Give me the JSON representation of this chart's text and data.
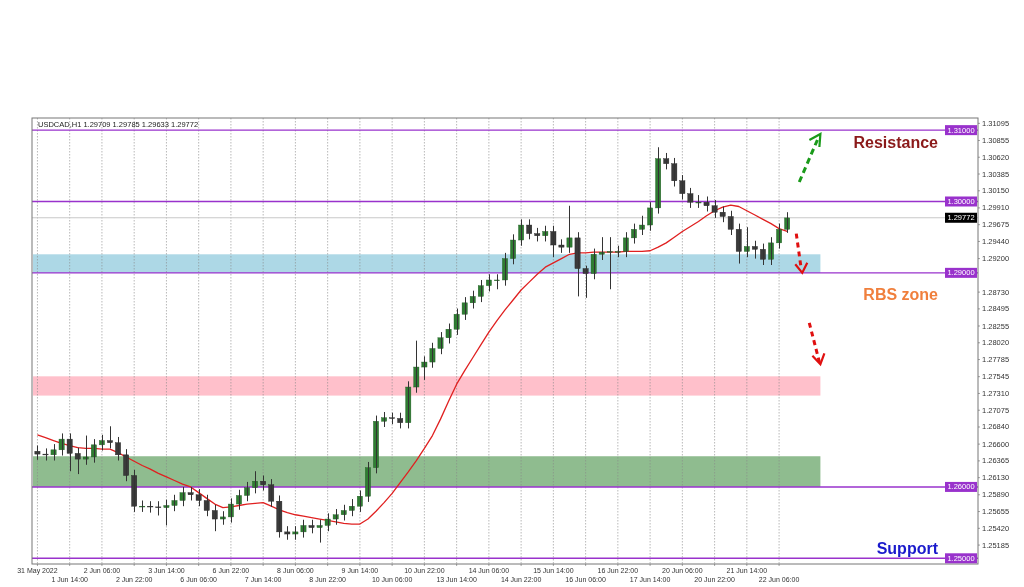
{
  "chart_data": {
    "type": "candlestick",
    "categories": [
      "31 May 2022",
      null,
      null,
      null,
      "1 Jun 14:00",
      null,
      null,
      null,
      "2 Jun 06:00",
      null,
      null,
      null,
      "2 Jun 22:00",
      null,
      null,
      null,
      "3 Jun 14:00",
      null,
      null,
      null,
      "6 Jun 06:00",
      null,
      null,
      null,
      "6 Jun 22:00",
      null,
      null,
      null,
      "7 Jun 14:00",
      null,
      null,
      null,
      "8 Jun 06:00",
      null,
      null,
      null,
      "8 Jun 22:00",
      null,
      null,
      null,
      "9 Jun 14:00",
      null,
      null,
      null,
      "10 Jun 06:00",
      null,
      null,
      null,
      "10 Jun 22:00",
      null,
      null,
      null,
      "13 Jun 14:00",
      null,
      null,
      null,
      "14 Jun 06:00",
      null,
      null,
      null,
      "14 Jun 22:00",
      null,
      null,
      null,
      "15 Jun 14:00",
      null,
      null,
      null,
      "16 Jun 06:00",
      null,
      null,
      null,
      "16 Jun 22:00",
      null,
      null,
      null,
      "17 Jun 14:00",
      null,
      null,
      null,
      "20 Jun 06:00",
      null,
      null,
      null,
      "20 Jun 22:00",
      null,
      null,
      null,
      "21 Jun 14:00",
      null,
      null,
      null,
      "22 Jun 06:00",
      null
    ],
    "ohlc": [
      [
        1.265,
        1.2658,
        1.2638,
        1.2646
      ],
      [
        1.2646,
        1.2654,
        1.2637,
        1.2645
      ],
      [
        1.2645,
        1.266,
        1.2637,
        1.2652
      ],
      [
        1.2652,
        1.2675,
        1.2644,
        1.2667
      ],
      [
        1.2667,
        1.2675,
        1.2622,
        1.2647
      ],
      [
        1.2647,
        1.2655,
        1.2618,
        1.2639
      ],
      [
        1.2639,
        1.2672,
        1.2631,
        1.2642
      ],
      [
        1.2642,
        1.2667,
        1.2634,
        1.2659
      ],
      [
        1.2659,
        1.2673,
        1.2651,
        1.2665
      ],
      [
        1.2665,
        1.2685,
        1.2654,
        1.2662
      ],
      [
        1.2662,
        1.267,
        1.2637,
        1.2645
      ],
      [
        1.2645,
        1.2653,
        1.2608,
        1.2616
      ],
      [
        1.2616,
        1.2624,
        1.2565,
        1.2573
      ],
      [
        1.2573,
        1.2581,
        1.2565,
        1.2573
      ],
      [
        1.2573,
        1.258,
        1.2564,
        1.2572
      ],
      [
        1.2572,
        1.258,
        1.256,
        1.2571
      ],
      [
        1.2571,
        1.2582,
        1.2546,
        1.2574
      ],
      [
        1.2574,
        1.2589,
        1.2566,
        1.2581
      ],
      [
        1.2581,
        1.26,
        1.2573,
        1.2592
      ],
      [
        1.2592,
        1.26,
        1.2581,
        1.2589
      ],
      [
        1.2589,
        1.2597,
        1.2573,
        1.2581
      ],
      [
        1.2581,
        1.2589,
        1.2559,
        1.2567
      ],
      [
        1.2567,
        1.2575,
        1.2538,
        1.2555
      ],
      [
        1.2555,
        1.2566,
        1.2547,
        1.2558
      ],
      [
        1.2558,
        1.2584,
        1.255,
        1.2576
      ],
      [
        1.2576,
        1.2596,
        1.2568,
        1.2588
      ],
      [
        1.2588,
        1.2607,
        1.258,
        1.2599
      ],
      [
        1.2599,
        1.2622,
        1.2591,
        1.2608
      ],
      [
        1.2608,
        1.2616,
        1.2595,
        1.2603
      ],
      [
        1.2603,
        1.2611,
        1.2572,
        1.258
      ],
      [
        1.258,
        1.2588,
        1.2529,
        1.2537
      ],
      [
        1.2537,
        1.2545,
        1.2526,
        1.2534
      ],
      [
        1.2534,
        1.2545,
        1.2526,
        1.2537
      ],
      [
        1.2537,
        1.2554,
        1.2529,
        1.2546
      ],
      [
        1.2546,
        1.2554,
        1.2535,
        1.2543
      ],
      [
        1.2543,
        1.2554,
        1.2522,
        1.2546
      ],
      [
        1.2546,
        1.2563,
        1.2538,
        1.2555
      ],
      [
        1.2555,
        1.2569,
        1.2547,
        1.2561
      ],
      [
        1.2561,
        1.2575,
        1.2553,
        1.2567
      ],
      [
        1.2567,
        1.2583,
        1.2559,
        1.2573
      ],
      [
        1.2573,
        1.2595,
        1.2565,
        1.2587
      ],
      [
        1.2587,
        1.2635,
        1.2579,
        1.2627
      ],
      [
        1.2627,
        1.27,
        1.2619,
        1.2692
      ],
      [
        1.2692,
        1.2705,
        1.2684,
        1.2697
      ],
      [
        1.2697,
        1.2704,
        1.2688,
        1.2696
      ],
      [
        1.2696,
        1.2704,
        1.2682,
        1.269
      ],
      [
        1.269,
        1.2748,
        1.2682,
        1.274
      ],
      [
        1.274,
        1.2805,
        1.2732,
        1.2768
      ],
      [
        1.2768,
        1.2783,
        1.275,
        1.2775
      ],
      [
        1.2775,
        1.2802,
        1.2767,
        1.2794
      ],
      [
        1.2794,
        1.2817,
        1.2786,
        1.2809
      ],
      [
        1.2809,
        1.2829,
        1.2801,
        1.2821
      ],
      [
        1.2821,
        1.285,
        1.2813,
        1.2842
      ],
      [
        1.2842,
        1.2866,
        1.2834,
        1.2858
      ],
      [
        1.2858,
        1.2875,
        1.285,
        1.2867
      ],
      [
        1.2867,
        1.289,
        1.2859,
        1.2882
      ],
      [
        1.2882,
        1.2898,
        1.2874,
        1.289
      ],
      [
        1.289,
        1.2898,
        1.2877,
        1.289
      ],
      [
        1.289,
        1.2928,
        1.2882,
        1.292
      ],
      [
        1.292,
        1.2954,
        1.2912,
        1.2946
      ],
      [
        1.2946,
        1.2975,
        1.2938,
        1.2967
      ],
      [
        1.2967,
        1.2975,
        1.2947,
        1.2955
      ],
      [
        1.2955,
        1.2963,
        1.2944,
        1.2952
      ],
      [
        1.2952,
        1.2966,
        1.2944,
        1.2958
      ],
      [
        1.2958,
        1.2966,
        1.2922,
        1.2939
      ],
      [
        1.2939,
        1.2947,
        1.2928,
        1.2936
      ],
      [
        1.2936,
        1.2994,
        1.2928,
        1.2949
      ],
      [
        1.2949,
        1.2957,
        1.2867,
        1.2906
      ],
      [
        1.2906,
        1.291,
        1.2865,
        1.2899
      ],
      [
        1.2899,
        1.2934,
        1.2891,
        1.2926
      ],
      [
        1.2926,
        1.295,
        1.2918,
        1.2929
      ],
      [
        1.2929,
        1.295,
        1.2877,
        1.293
      ],
      [
        1.293,
        1.2938,
        1.2922,
        1.293
      ],
      [
        1.293,
        1.2957,
        1.2922,
        1.2949
      ],
      [
        1.2949,
        1.2969,
        1.2941,
        1.2961
      ],
      [
        1.2961,
        1.298,
        1.2953,
        1.2967
      ],
      [
        1.2967,
        1.2999,
        1.2959,
        1.2991
      ],
      [
        1.2991,
        1.3076,
        1.2983,
        1.306
      ],
      [
        1.306,
        1.3068,
        1.3045,
        1.3053
      ],
      [
        1.3053,
        1.3061,
        1.3021,
        1.3029
      ],
      [
        1.3029,
        1.3037,
        1.3003,
        1.3011
      ],
      [
        1.3011,
        1.3019,
        1.2991,
        1.2999
      ],
      [
        1.2999,
        1.3009,
        1.2991,
        1.2999
      ],
      [
        1.2999,
        1.3007,
        1.2986,
        1.2994
      ],
      [
        1.2994,
        1.3002,
        1.2977,
        1.2985
      ],
      [
        1.2985,
        1.2993,
        1.2971,
        1.2979
      ],
      [
        1.2979,
        1.2987,
        1.2953,
        1.2961
      ],
      [
        1.2961,
        1.2969,
        1.2913,
        1.293
      ],
      [
        1.293,
        1.2964,
        1.2922,
        1.2937
      ],
      [
        1.2937,
        1.2945,
        1.292,
        1.2933
      ],
      [
        1.2933,
        1.2941,
        1.2911,
        1.2919
      ],
      [
        1.2919,
        1.295,
        1.2911,
        1.2942
      ],
      [
        1.2942,
        1.2969,
        1.2934,
        1.2961
      ],
      [
        1.2961,
        1.2985,
        1.2956,
        1.2977
      ]
    ],
    "series": [
      {
        "type": "line",
        "color": "#e02020",
        "values": [
          1.2673,
          1.2669,
          1.2665,
          1.2661,
          1.2658,
          1.2655,
          1.2654,
          1.2654,
          1.2653,
          1.2653,
          1.2648,
          1.2642,
          1.2636,
          1.263,
          1.2625,
          1.2619,
          1.2614,
          1.2609,
          1.2604,
          1.26,
          1.2592,
          1.2584,
          1.2576,
          1.2571,
          1.2572,
          1.2574,
          1.2576,
          1.2577,
          1.2578,
          1.2573,
          1.2568,
          1.2564,
          1.2561,
          1.2559,
          1.2557,
          1.2555,
          1.2553,
          1.2551,
          1.2549,
          1.2548,
          1.2548,
          1.2555,
          1.2566,
          1.2578,
          1.2591,
          1.2606,
          1.2621,
          1.2637,
          1.2654,
          1.2672,
          1.2695,
          1.272,
          1.2744,
          1.2763,
          1.2781,
          1.2799,
          1.2817,
          1.2833,
          1.2848,
          1.2862,
          1.2876,
          1.2887,
          1.2898,
          1.2908,
          1.2914,
          1.292,
          1.2926,
          1.2928,
          1.2928,
          1.2929,
          1.2929,
          1.2929,
          1.2929,
          1.293,
          1.293,
          1.293,
          1.2931,
          1.2936,
          1.2942,
          1.295,
          1.2958,
          1.2965,
          1.2972,
          1.298,
          1.2987,
          1.2992,
          1.2995,
          1.2993,
          1.2987,
          1.2981,
          1.2975,
          1.2969,
          1.2962,
          1.2958
        ]
      }
    ],
    "ylim": [
      1.2492,
      1.3117
    ],
    "yticks": [
      {
        "value": 1.31095,
        "label": "1.31095"
      },
      {
        "value": 1.30855,
        "label": "1.30855"
      },
      {
        "value": 1.3062,
        "label": "1.30620"
      },
      {
        "value": 1.30385,
        "label": "1.30385"
      },
      {
        "value": 1.3015,
        "label": "1.30150"
      },
      {
        "value": 1.2991,
        "label": "1.29910"
      },
      {
        "value": 1.29675,
        "label": "1.29675"
      },
      {
        "value": 1.2944,
        "label": "1.29440"
      },
      {
        "value": 1.292,
        "label": "1.29200"
      },
      {
        "value": 1.2873,
        "label": "1.28730"
      },
      {
        "value": 1.28495,
        "label": "1.28495"
      },
      {
        "value": 1.28255,
        "label": "1.28255"
      },
      {
        "value": 1.2802,
        "label": "1.28020"
      },
      {
        "value": 1.27785,
        "label": "1.27785"
      },
      {
        "value": 1.27545,
        "label": "1.27545"
      },
      {
        "value": 1.2731,
        "label": "1.27310"
      },
      {
        "value": 1.27075,
        "label": "1.27075"
      },
      {
        "value": 1.2684,
        "label": "1.26840"
      },
      {
        "value": 1.266,
        "label": "1.26600"
      },
      {
        "value": 1.26365,
        "label": "1.26365"
      },
      {
        "value": 1.2613,
        "label": "1.26130"
      },
      {
        "value": 1.2589,
        "label": "1.25890"
      },
      {
        "value": 1.25655,
        "label": "1.25655"
      },
      {
        "value": 1.2542,
        "label": "1.25420"
      },
      {
        "value": 1.25185,
        "label": "1.25185"
      }
    ],
    "grid": "x",
    "bands": [
      {
        "axis": "y",
        "from": 1.29,
        "to": 1.2926,
        "color": "#add8e6"
      },
      {
        "axis": "y",
        "from": 1.2728,
        "to": 1.2755,
        "color": "#ffc0cb"
      },
      {
        "axis": "y",
        "from": 1.26,
        "to": 1.2643,
        "color": "#8fbc8f"
      }
    ],
    "ref_lines": [
      {
        "axis": "y",
        "value": 1.31,
        "label": "1.31000",
        "color": "#9932cc"
      },
      {
        "axis": "y",
        "value": 1.3,
        "label": "1.30000",
        "color": "#9932cc"
      },
      {
        "axis": "y",
        "value": 1.29,
        "label": "1.29000",
        "color": "#9932cc"
      },
      {
        "axis": "y",
        "value": 1.26,
        "label": "1.26000",
        "color": "#9932cc"
      },
      {
        "axis": "y",
        "value": 1.25,
        "label": "1.25000",
        "color": "#9932cc"
      },
      {
        "axis": "y",
        "value": 1.29772,
        "label": "1.29772",
        "color": "#c8c8c8"
      }
    ],
    "annotations": [
      "USDCAD,H1 1.29709 1.29785 1.29633 1.29772",
      "Resistance",
      "RBS zone",
      "Support"
    ]
  }
}
